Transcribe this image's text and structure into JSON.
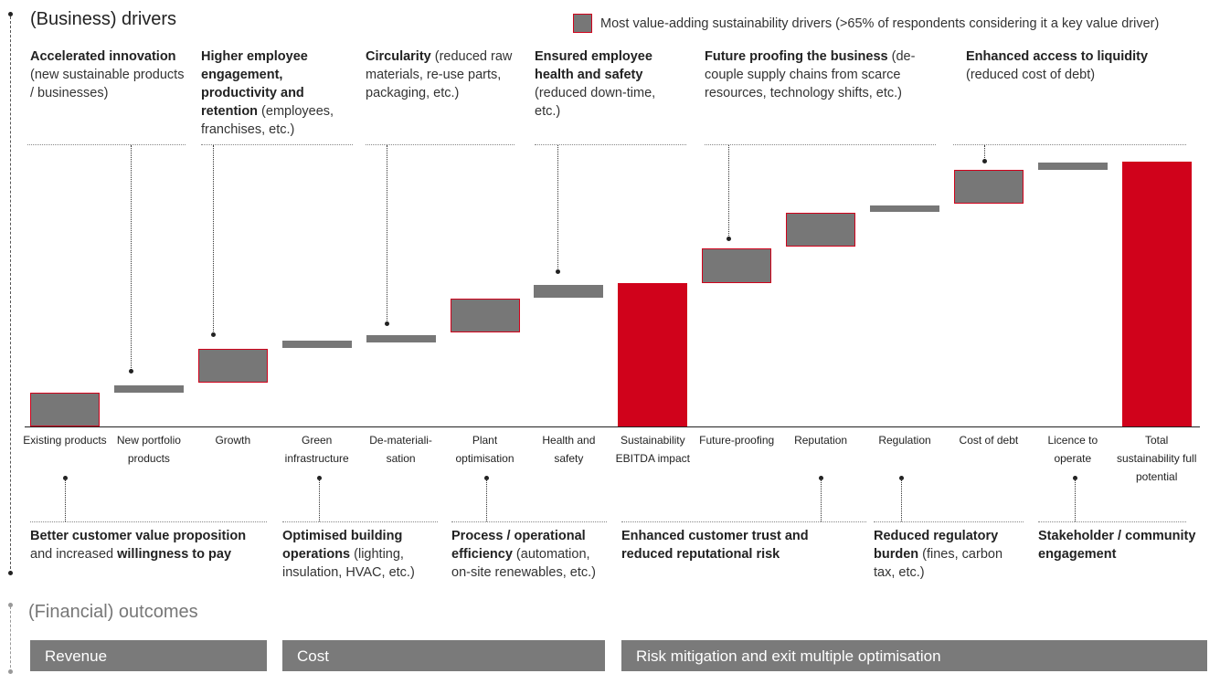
{
  "header": {
    "title": "(Business) drivers"
  },
  "legend": {
    "label": "Most value-adding sustainability drivers (>65% of respondents considering it a key value driver)"
  },
  "drivers": [
    {
      "bold": "Accelerated innovation",
      "normal": " (new sustainable products / businesses)"
    },
    {
      "bold": "Higher employee engagement, productivity and retention",
      "normal": " (employees, franchises, etc.)"
    },
    {
      "bold": "Circularity",
      "normal": " (reduced raw materials, re-use parts, packaging, etc.)"
    },
    {
      "bold": "Ensured employee health and safety",
      "normal": " (reduced down-time, etc.)"
    },
    {
      "bold": "Future proofing the business",
      "normal": " (de-couple supply chains from scarce resources, technology shifts, etc.)"
    },
    {
      "bold": "Enhanced access to liquidity",
      "normal": " (reduced cost of debt)"
    }
  ],
  "outcome_drivers": [
    {
      "b1": "Better customer value proposition",
      "n1": " and increased ",
      "b2": "willingness to pay",
      "n2": ""
    },
    {
      "b1": "Optimised building operations",
      "n1": " (lighting, insulation, HVAC, etc.)",
      "b2": "",
      "n2": ""
    },
    {
      "b1": "Process / operational efficiency",
      "n1": " (automation, on-site renewables, etc.)",
      "b2": "",
      "n2": ""
    },
    {
      "b1": "Enhanced customer trust and reduced reputational risk",
      "n1": "",
      "b2": "",
      "n2": ""
    },
    {
      "b1": "Reduced regulatory burden",
      "n1": " (fines, carbon tax, etc.)",
      "b2": "",
      "n2": ""
    },
    {
      "b1": "Stakeholder / community engagement",
      "n1": "",
      "b2": "",
      "n2": ""
    }
  ],
  "financial": {
    "title": "(Financial) outcomes",
    "boxes": [
      "Revenue",
      "Cost",
      "Risk mitigation and exit multiple optimisation"
    ]
  },
  "colors": {
    "grey_bar": "#777777",
    "red": "#d0021b",
    "box": "#7a7a7a"
  },
  "chart_data": {
    "type": "waterfall",
    "title": "",
    "ylim": [
      0,
      100
    ],
    "categories": [
      "Existing products",
      "New portfolio products",
      "Growth",
      "Green infrastructure",
      "De-materiali-sation",
      "Plant optimisation",
      "Health and safety",
      "Sustainability EBITDA impact",
      "Future-proofing",
      "Reputation",
      "Regulation",
      "Cost of debt",
      "Licence to operate",
      "Total sustainability full potential"
    ],
    "bars": [
      {
        "start": 0,
        "end": 12.8,
        "highlight": true,
        "total": false
      },
      {
        "start": 12.8,
        "end": 15.5,
        "highlight": false,
        "total": false
      },
      {
        "start": 16.6,
        "end": 29.3,
        "highlight": true,
        "total": false
      },
      {
        "start": 29.7,
        "end": 32.4,
        "highlight": false,
        "total": false
      },
      {
        "start": 31.7,
        "end": 34.5,
        "highlight": false,
        "total": false
      },
      {
        "start": 35.5,
        "end": 48.3,
        "highlight": true,
        "total": false
      },
      {
        "start": 48.6,
        "end": 53.4,
        "highlight": false,
        "total": false
      },
      {
        "start": 0,
        "end": 54.1,
        "highlight": false,
        "total": true
      },
      {
        "start": 54.1,
        "end": 67.2,
        "highlight": true,
        "total": false
      },
      {
        "start": 67.9,
        "end": 80.7,
        "highlight": true,
        "total": false
      },
      {
        "start": 81.0,
        "end": 83.4,
        "highlight": false,
        "total": false
      },
      {
        "start": 84.1,
        "end": 96.9,
        "highlight": true,
        "total": false
      },
      {
        "start": 96.9,
        "end": 99.7,
        "highlight": false,
        "total": false
      },
      {
        "start": 0,
        "end": 100,
        "highlight": false,
        "total": true
      }
    ]
  }
}
